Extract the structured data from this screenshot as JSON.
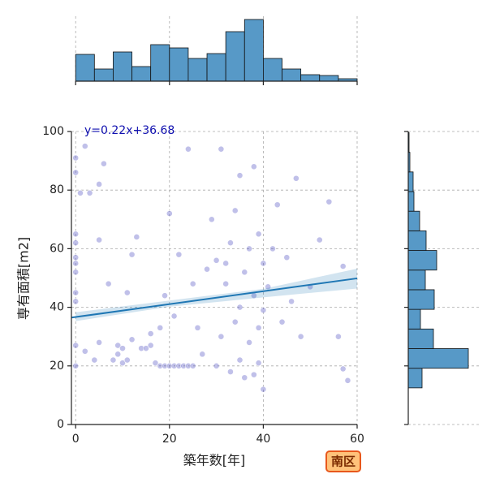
{
  "chart_data": [
    {
      "type": "scatter",
      "xlabel": "築年数[年]",
      "ylabel": "専有面積[m2]",
      "annotation": "y=0.22x+36.68",
      "badge": "南区",
      "xlim": [
        -0.9,
        60
      ],
      "ylim": [
        0,
        100
      ],
      "xticks": [
        0,
        20,
        40,
        60
      ],
      "yticks": [
        0,
        20,
        40,
        60,
        80,
        100
      ],
      "grid": true,
      "color": "#4b4bc0",
      "line_color": "#1f77b4",
      "regression": {
        "slope": 0.22,
        "intercept": 36.68
      },
      "ci": {
        "x": [
          0,
          20,
          40,
          60
        ],
        "lower": [
          35.3,
          40.2,
          43.4,
          46.4
        ],
        "upper": [
          38.3,
          42.3,
          46.3,
          53.2
        ]
      },
      "x": [
        0,
        0,
        0,
        0,
        0,
        0,
        0,
        0,
        0,
        0,
        0,
        2,
        3,
        1,
        2,
        4,
        5,
        5,
        6,
        5,
        7,
        8,
        9,
        9,
        10,
        10,
        11,
        11,
        12,
        12,
        13,
        14,
        15,
        16,
        16,
        17,
        18,
        18,
        19,
        19,
        20,
        20,
        21,
        21,
        22,
        22,
        23,
        24,
        24,
        25,
        25,
        26,
        27,
        28,
        29,
        30,
        30,
        31,
        31,
        32,
        32,
        33,
        33,
        34,
        34,
        35,
        35,
        35,
        36,
        36,
        37,
        37,
        38,
        38,
        38,
        39,
        39,
        39,
        40,
        40,
        40,
        41,
        42,
        43,
        44,
        45,
        46,
        47,
        48,
        50,
        52,
        54,
        56,
        57,
        58,
        57
      ],
      "y": [
        20,
        27,
        42,
        45,
        52,
        55,
        57,
        62,
        65,
        86,
        91,
        95,
        79,
        79,
        25,
        22,
        28,
        63,
        89,
        82,
        48,
        22,
        24,
        27,
        21,
        26,
        22,
        45,
        29,
        58,
        64,
        26,
        26,
        27,
        31,
        21,
        20,
        33,
        20,
        44,
        20,
        72,
        20,
        37,
        20,
        58,
        20,
        20,
        94,
        20,
        48,
        33,
        24,
        53,
        70,
        20,
        56,
        30,
        94,
        48,
        55,
        62,
        18,
        35,
        73,
        85,
        40,
        22,
        16,
        52,
        60,
        28,
        88,
        44,
        17,
        65,
        33,
        21,
        55,
        39,
        12,
        47,
        60,
        75,
        35,
        57,
        42,
        84,
        30,
        47,
        63,
        76,
        30,
        19,
        15,
        54
      ]
    },
    {
      "type": "histogram",
      "color": "#5799c7",
      "bins": [
        0,
        4,
        8,
        12,
        16,
        20,
        24,
        28,
        32,
        36,
        40,
        44,
        48,
        52,
        56,
        60
      ],
      "counts": [
        33,
        15,
        36,
        18,
        45,
        41,
        28,
        34,
        61,
        76,
        28,
        15,
        8,
        7,
        3
      ],
      "ylim": [
        0,
        80
      ],
      "xticks": [
        0,
        20,
        40,
        60
      ],
      "grid": true
    },
    {
      "type": "histogram",
      "orientation": "horizontal",
      "color": "#5799c7",
      "bins": [
        12.5,
        19.2,
        25.9,
        32.6,
        39.3,
        46,
        52.7,
        59.4,
        66.1,
        72.8,
        79.5,
        86.2,
        92.9,
        99.6
      ],
      "counts": [
        17,
        74,
        31,
        15,
        32,
        21,
        35,
        22,
        14,
        7,
        6,
        2,
        1
      ],
      "xlim": [
        0,
        80
      ],
      "yticks": [
        0,
        20,
        40,
        60,
        80,
        100
      ],
      "grid": true
    }
  ]
}
